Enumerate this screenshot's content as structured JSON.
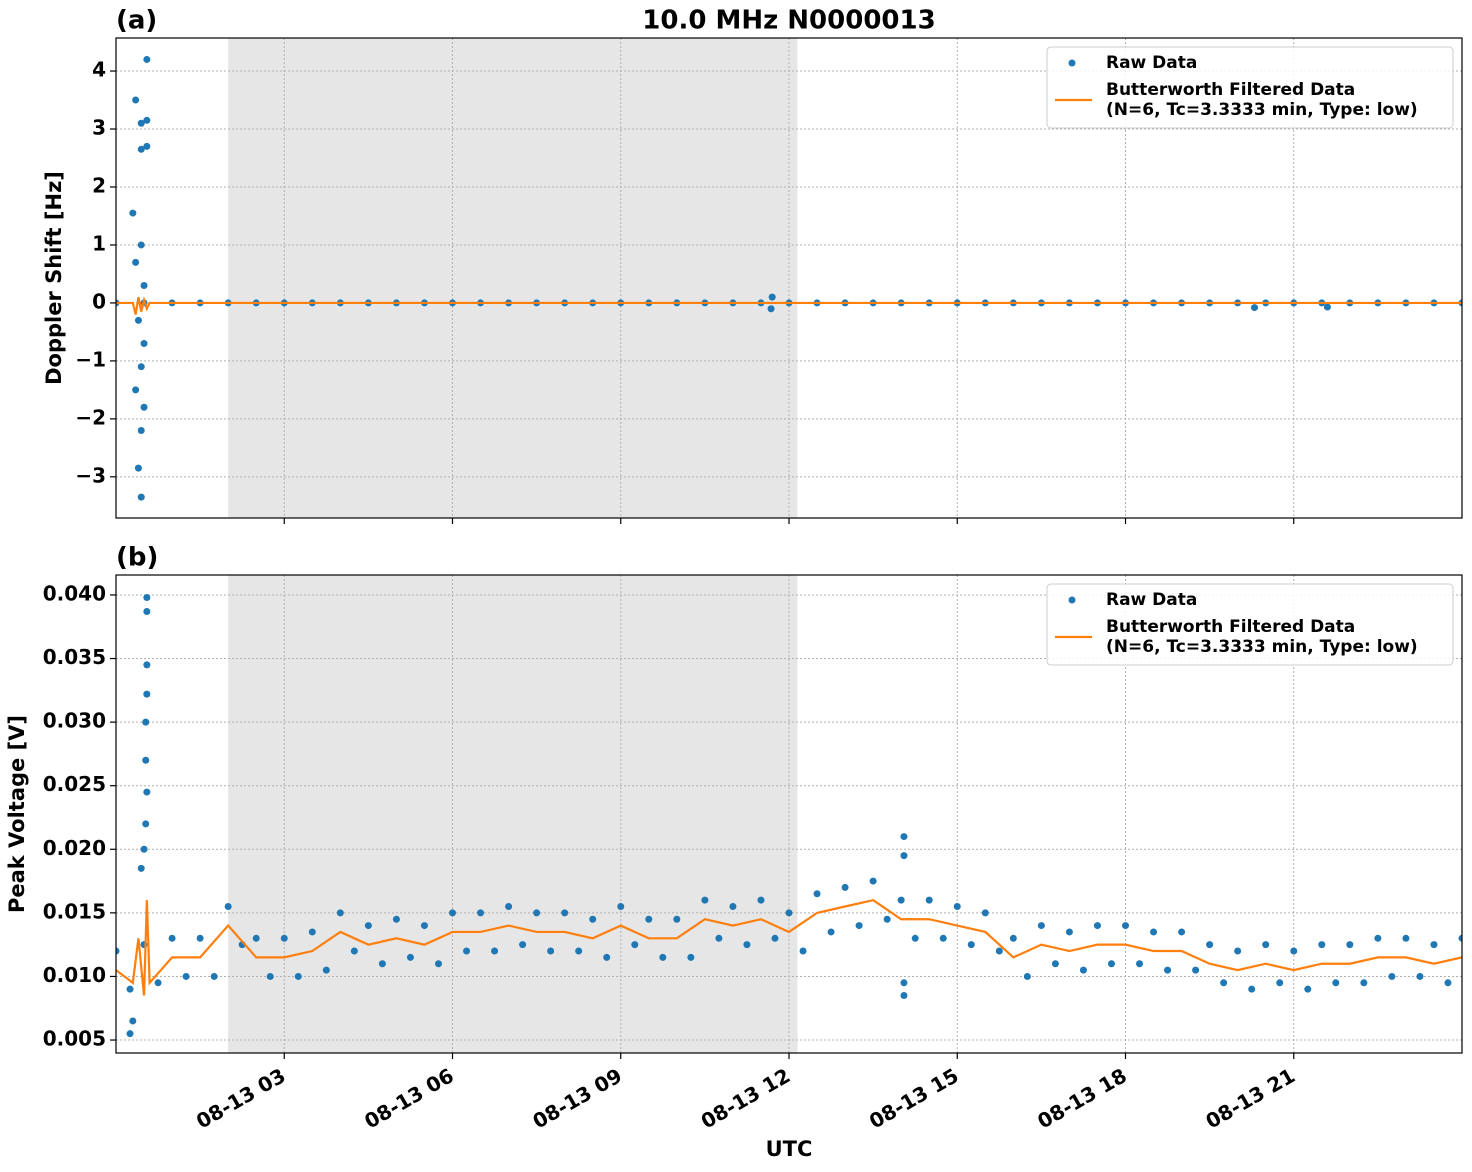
{
  "chart_data": [
    {
      "type": "scatter",
      "panel_label": "(a)",
      "title": "10.0 MHz N0000013",
      "ylabel": "Doppler Shift [Hz]",
      "xlim": [
        0,
        24
      ],
      "xticks": [
        3,
        6,
        9,
        12,
        15,
        18,
        21
      ],
      "ylim": [
        -3.71,
        4.57
      ],
      "yticks": [
        4,
        3,
        2,
        1,
        0,
        {
          "value": -1,
          "label": "−1"
        },
        {
          "value": -2,
          "label": "−2"
        },
        {
          "value": -3,
          "label": "−3"
        }
      ],
      "grid": true,
      "legend": "upper right",
      "shaded_span": [
        2.0,
        12.15
      ],
      "shade_color": "#e6e6e6",
      "series": [
        {
          "name": "Raw Data",
          "color": "#1f77b4",
          "mode": "markers",
          "x": [
            0,
            0.5,
            1,
            1.5,
            2,
            2.5,
            3,
            3.5,
            4,
            4.5,
            5,
            5.5,
            6,
            6.5,
            7,
            7.5,
            8,
            8.5,
            9,
            9.5,
            10,
            10.5,
            11,
            11.5,
            12,
            12.5,
            13,
            13.5,
            14,
            14.5,
            15,
            15.5,
            16,
            16.5,
            17,
            17.5,
            18,
            18.5,
            19,
            19.5,
            20,
            20.5,
            21,
            21.5,
            22,
            22.5,
            23,
            23.5,
            24,
            0.35,
            0.55,
            0.45,
            0.55,
            0.55,
            0.45,
            0.3,
            0.45,
            0.35,
            0.5,
            0.4,
            0.5,
            0.45,
            0.35,
            0.5,
            0.45,
            0.4,
            0.45,
            11.7,
            11.68,
            20.3,
            21.6
          ],
          "values": [
            0,
            0,
            0,
            0,
            0,
            0,
            0,
            0,
            0,
            0,
            0,
            0,
            0,
            0,
            0,
            0,
            0,
            0,
            0,
            0,
            0,
            0,
            0,
            0,
            0,
            0,
            0,
            0,
            0,
            0,
            0,
            0,
            0,
            0,
            0,
            0,
            0,
            0,
            0,
            0,
            0,
            0,
            0,
            0,
            0,
            0,
            0,
            0,
            0,
            3.5,
            4.2,
            3.1,
            3.15,
            2.7,
            2.65,
            1.55,
            1.0,
            0.7,
            0.3,
            -0.3,
            -0.7,
            -1.1,
            -1.5,
            -1.8,
            -2.2,
            -2.85,
            -3.35,
            0.1,
            -0.1,
            -0.08,
            -0.07
          ]
        },
        {
          "name": "Butterworth Filtered Data\n(N=6, Tc=3.3333 min, Type: low)",
          "color": "#ff7f0e",
          "mode": "lines",
          "x": [
            0,
            0.3,
            0.35,
            0.4,
            0.45,
            0.5,
            0.55,
            0.6,
            1,
            24
          ],
          "values": [
            0,
            0,
            -0.2,
            0.1,
            -0.15,
            0.05,
            -0.1,
            0,
            0,
            0
          ]
        }
      ]
    },
    {
      "type": "scatter",
      "panel_label": "(b)",
      "ylabel": "Peak Voltage [V]",
      "xlabel": "UTC",
      "xlim": [
        0,
        24
      ],
      "xticks": [
        {
          "value": 3,
          "label": "08-13 03"
        },
        {
          "value": 6,
          "label": "08-13 06"
        },
        {
          "value": 9,
          "label": "08-13 09"
        },
        {
          "value": 12,
          "label": "08-13 12"
        },
        {
          "value": 15,
          "label": "08-13 15"
        },
        {
          "value": 18,
          "label": "08-13 18"
        },
        {
          "value": 21,
          "label": "08-13 21"
        }
      ],
      "ylim": [
        0.00398,
        0.04157
      ],
      "yticks": [
        0.005,
        {
          "value": 0.01,
          "label": "0.010"
        },
        0.015,
        {
          "value": 0.02,
          "label": "0.020"
        },
        0.025,
        {
          "value": 0.03,
          "label": "0.030"
        },
        0.035,
        {
          "value": 0.04,
          "label": "0.040"
        }
      ],
      "grid": true,
      "legend": "upper right",
      "shaded_span": [
        2.0,
        12.15
      ],
      "shade_color": "#e6e6e6",
      "series": [
        {
          "name": "Raw Data",
          "color": "#1f77b4",
          "mode": "markers",
          "x": [
            0,
            0.25,
            0.5,
            0.75,
            1,
            1.25,
            1.5,
            1.75,
            2,
            2.25,
            2.5,
            2.75,
            3,
            3.25,
            3.5,
            3.75,
            4,
            4.25,
            4.5,
            4.75,
            5,
            5.25,
            5.5,
            5.75,
            6,
            6.25,
            6.5,
            6.75,
            7,
            7.25,
            7.5,
            7.75,
            8,
            8.25,
            8.5,
            8.75,
            9,
            9.25,
            9.5,
            9.75,
            10,
            10.25,
            10.5,
            10.75,
            11,
            11.25,
            11.5,
            11.75,
            12,
            12.25,
            12.5,
            12.75,
            13,
            13.25,
            13.5,
            13.75,
            14,
            14.25,
            14.5,
            14.75,
            15,
            15.25,
            15.5,
            15.75,
            16,
            16.25,
            16.5,
            16.75,
            17,
            17.25,
            17.5,
            17.75,
            18,
            18.25,
            18.5,
            18.75,
            19,
            19.25,
            19.5,
            19.75,
            20,
            20.25,
            20.5,
            20.75,
            21,
            21.25,
            21.5,
            21.75,
            22,
            22.25,
            22.5,
            22.75,
            23,
            23.25,
            23.5,
            23.75,
            24,
            0.55,
            0.55,
            0.55,
            0.55,
            0.53,
            0.53,
            0.55,
            0.53,
            0.5,
            0.45,
            0.25,
            0.3,
            14.05,
            14.05,
            14.05,
            14.05
          ],
          "values": [
            0.012,
            0.009,
            0.0125,
            0.0095,
            0.013,
            0.01,
            0.013,
            0.01,
            0.0155,
            0.0125,
            0.013,
            0.01,
            0.013,
            0.01,
            0.0135,
            0.0105,
            0.015,
            0.012,
            0.014,
            0.011,
            0.0145,
            0.0115,
            0.014,
            0.011,
            0.015,
            0.012,
            0.015,
            0.012,
            0.0155,
            0.0125,
            0.015,
            0.012,
            0.015,
            0.012,
            0.0145,
            0.0115,
            0.0155,
            0.0125,
            0.0145,
            0.0115,
            0.0145,
            0.0115,
            0.016,
            0.013,
            0.0155,
            0.0125,
            0.016,
            0.013,
            0.015,
            0.012,
            0.0165,
            0.0135,
            0.017,
            0.014,
            0.0175,
            0.0145,
            0.016,
            0.013,
            0.016,
            0.013,
            0.0155,
            0.0125,
            0.015,
            0.012,
            0.013,
            0.01,
            0.014,
            0.011,
            0.0135,
            0.0105,
            0.014,
            0.011,
            0.014,
            0.011,
            0.0135,
            0.0105,
            0.0135,
            0.0105,
            0.0125,
            0.0095,
            0.012,
            0.009,
            0.0125,
            0.0095,
            0.012,
            0.009,
            0.0125,
            0.0095,
            0.0125,
            0.0095,
            0.013,
            0.01,
            0.013,
            0.01,
            0.0125,
            0.0095,
            0.013,
            0.0398,
            0.0387,
            0.0345,
            0.0322,
            0.03,
            0.027,
            0.0245,
            0.022,
            0.02,
            0.0185,
            0.0055,
            0.0065,
            0.021,
            0.0195,
            0.0095,
            0.0085
          ]
        },
        {
          "name": "Butterworth Filtered Data\n(N=6, Tc=3.3333 min, Type: low)",
          "color": "#ff7f0e",
          "mode": "lines",
          "x": [
            0,
            0.3,
            0.4,
            0.5,
            0.55,
            0.6,
            1,
            1.5,
            2,
            2.5,
            3,
            3.5,
            4,
            4.5,
            5,
            5.5,
            6,
            6.5,
            7,
            7.5,
            8,
            8.5,
            9,
            9.5,
            10,
            10.5,
            11,
            11.5,
            12,
            12.5,
            13,
            13.5,
            14,
            14.5,
            15,
            15.5,
            16,
            16.5,
            17,
            17.5,
            18,
            18.5,
            19,
            19.5,
            20,
            20.5,
            21,
            21.5,
            22,
            22.5,
            23,
            23.5,
            24
          ],
          "values": [
            0.0105,
            0.0095,
            0.013,
            0.0085,
            0.016,
            0.0095,
            0.0115,
            0.0115,
            0.014,
            0.0115,
            0.0115,
            0.012,
            0.0135,
            0.0125,
            0.013,
            0.0125,
            0.0135,
            0.0135,
            0.014,
            0.0135,
            0.0135,
            0.013,
            0.014,
            0.013,
            0.013,
            0.0145,
            0.014,
            0.0145,
            0.0135,
            0.015,
            0.0155,
            0.016,
            0.0145,
            0.0145,
            0.014,
            0.0135,
            0.0115,
            0.0125,
            0.012,
            0.0125,
            0.0125,
            0.012,
            0.012,
            0.011,
            0.0105,
            0.011,
            0.0105,
            0.011,
            0.011,
            0.0115,
            0.0115,
            0.011,
            0.0115
          ]
        }
      ]
    }
  ]
}
